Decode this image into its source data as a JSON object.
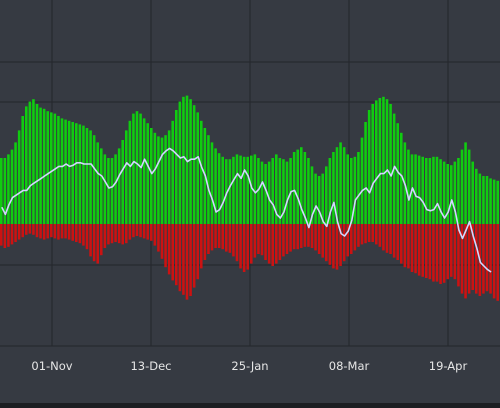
{
  "chart_data": {
    "type": "bar",
    "title": "",
    "xlabel": "",
    "ylabel": "",
    "grid": true,
    "legend": "none",
    "x_tick_labels": [
      "01-Nov",
      "13-Dec",
      "25-Jan",
      "08-Mar",
      "19-Apr"
    ],
    "x_range": [
      "2021-09-19",
      "2022-05-19"
    ],
    "y_range": [
      -80,
      130
    ],
    "series": [
      {
        "kind": "bar",
        "color": "#10cc10",
        "values": [
          55,
          55,
          58,
          62,
          68,
          78,
          90,
          98,
          102,
          104,
          100,
          97,
          96,
          94,
          93,
          92,
          90,
          88,
          87,
          86,
          85,
          84,
          83,
          82,
          80,
          78,
          74,
          68,
          63,
          58,
          55,
          55,
          58,
          63,
          70,
          78,
          86,
          92,
          94,
          92,
          88,
          84,
          80,
          76,
          73,
          72,
          74,
          78,
          86,
          95,
          102,
          106,
          107,
          104,
          99,
          93,
          86,
          80,
          74,
          68,
          63,
          59,
          56,
          54,
          54,
          56,
          58,
          57,
          56,
          56,
          57,
          58,
          55,
          52,
          50,
          52,
          55,
          58,
          55,
          54,
          52,
          55,
          60,
          62,
          64,
          60,
          55,
          48,
          42,
          40,
          42,
          48,
          55,
          60,
          64,
          68,
          64,
          58,
          55,
          56,
          60,
          72,
          85,
          95,
          100,
          103,
          105,
          106,
          104,
          100,
          92,
          84,
          76,
          68,
          62,
          58,
          58,
          57,
          56,
          55,
          55,
          56,
          56,
          54,
          52,
          50,
          49,
          52,
          55,
          62,
          68,
          62,
          52,
          46,
          42,
          40,
          40,
          38,
          37,
          36
        ]
      },
      {
        "kind": "bar",
        "color": "#cc1212",
        "values": [
          -18,
          -20,
          -19,
          -17,
          -15,
          -13,
          -11,
          -9,
          -8,
          -9,
          -11,
          -12,
          -13,
          -12,
          -11,
          -12,
          -13,
          -12,
          -12,
          -13,
          -14,
          -15,
          -16,
          -18,
          -21,
          -27,
          -31,
          -33,
          -26,
          -20,
          -17,
          -16,
          -15,
          -16,
          -17,
          -16,
          -13,
          -11,
          -10,
          -11,
          -12,
          -13,
          -14,
          -18,
          -23,
          -29,
          -36,
          -42,
          -47,
          -51,
          -56,
          -59,
          -63,
          -60,
          -53,
          -46,
          -37,
          -30,
          -25,
          -22,
          -20,
          -20,
          -21,
          -23,
          -24,
          -27,
          -31,
          -37,
          -40,
          -38,
          -33,
          -28,
          -25,
          -26,
          -30,
          -33,
          -35,
          -33,
          -30,
          -27,
          -25,
          -23,
          -21,
          -21,
          -20,
          -19,
          -19,
          -20,
          -22,
          -25,
          -28,
          -31,
          -34,
          -37,
          -38,
          -35,
          -31,
          -27,
          -25,
          -22,
          -19,
          -17,
          -16,
          -15,
          -15,
          -17,
          -19,
          -22,
          -24,
          -25,
          -28,
          -30,
          -33,
          -36,
          -37,
          -40,
          -41,
          -43,
          -44,
          -45,
          -46,
          -48,
          -48,
          -50,
          -49,
          -46,
          -44,
          -46,
          -52,
          -58,
          -62,
          -58,
          -55,
          -58,
          -60,
          -58,
          -56,
          -58,
          -62,
          -64
        ]
      },
      {
        "kind": "line",
        "color": "#d2d8ff",
        "values": [
          14,
          8,
          16,
          22,
          24,
          26,
          28,
          28,
          32,
          34,
          36,
          38,
          40,
          42,
          44,
          46,
          48,
          48,
          50,
          48,
          49,
          51,
          51,
          50,
          50,
          50,
          46,
          42,
          40,
          35,
          30,
          31,
          35,
          41,
          46,
          51,
          48,
          52,
          50,
          47,
          54,
          48,
          42,
          46,
          52,
          58,
          61,
          63,
          61,
          58,
          55,
          56,
          52,
          54,
          54,
          56,
          47,
          40,
          28,
          20,
          10,
          12,
          18,
          26,
          32,
          37,
          42,
          38,
          45,
          40,
          30,
          26,
          29,
          35,
          28,
          20,
          16,
          8,
          5,
          10,
          20,
          27,
          28,
          21,
          12,
          5,
          -3,
          8,
          15,
          10,
          2,
          -2,
          10,
          18,
          2,
          -8,
          -10,
          -6,
          3,
          20,
          24,
          28,
          30,
          26,
          34,
          38,
          42,
          42,
          45,
          40,
          48,
          43,
          40,
          32,
          20,
          30,
          23,
          22,
          18,
          12,
          11,
          12,
          17,
          10,
          5,
          10,
          20,
          10,
          -5,
          -12,
          -5,
          2,
          -10,
          -20,
          -32,
          -35,
          -38,
          -40
        ]
      }
    ]
  }
}
